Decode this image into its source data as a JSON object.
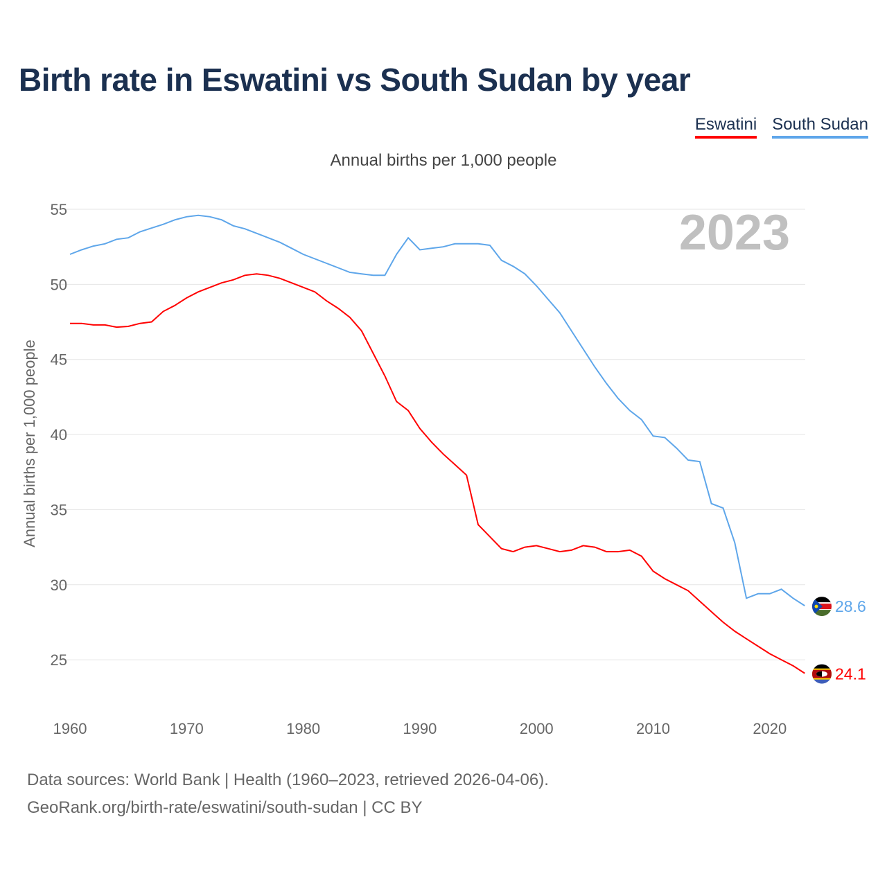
{
  "title": "Birth rate in Eswatini vs South Sudan by year",
  "footer": {
    "line1": "Data sources: World Bank | Health (1960–2023, retrieved 2026-04-06).",
    "line2": "GeoRank.org/birth-rate/eswatini/south-sudan | CC BY"
  },
  "chart_data": {
    "type": "line",
    "title": "Birth rate in Eswatini vs South Sudan by year",
    "subtitle": "Annual births per 1,000 people",
    "ylabel": "Annual births per 1,000 people",
    "xlabel": "",
    "year_label": "2023",
    "xlim": [
      1960,
      2023
    ],
    "ylim": [
      22,
      56
    ],
    "yticks": [
      25,
      30,
      35,
      40,
      45,
      50,
      55
    ],
    "xticks": [
      1960,
      1970,
      1980,
      1990,
      2000,
      2010,
      2020
    ],
    "grid": true,
    "legend": "top-right",
    "x_start": 1960,
    "series": [
      {
        "name": "Eswatini",
        "color": "#ff0000",
        "end_label": "24.1",
        "flag": "eswatini-flag",
        "values": [
          47.4,
          47.4,
          47.3,
          47.3,
          47.15,
          47.2,
          47.4,
          47.5,
          48.2,
          48.6,
          49.1,
          49.5,
          49.8,
          50.1,
          50.3,
          50.6,
          50.7,
          50.6,
          50.4,
          50.1,
          49.8,
          49.5,
          48.9,
          48.4,
          47.8,
          46.9,
          45.4,
          43.9,
          42.2,
          41.6,
          40.4,
          39.5,
          38.7,
          38.0,
          37.3,
          34.0,
          33.2,
          32.4,
          32.2,
          32.5,
          32.6,
          32.4,
          32.2,
          32.3,
          32.6,
          32.5,
          32.2,
          32.2,
          32.3,
          31.9,
          30.9,
          30.4,
          30.0,
          29.6,
          28.9,
          28.2,
          27.5,
          26.9,
          26.4,
          25.9,
          25.4,
          25.0,
          24.6,
          24.1
        ]
      },
      {
        "name": "South Sudan",
        "color": "#5ea6ea",
        "end_label": "28.6",
        "flag": "south-sudan-flag",
        "values": [
          52.0,
          52.3,
          52.55,
          52.7,
          53.0,
          53.1,
          53.5,
          53.75,
          54.0,
          54.3,
          54.5,
          54.6,
          54.5,
          54.3,
          53.9,
          53.7,
          53.4,
          53.1,
          52.8,
          52.4,
          52.0,
          51.7,
          51.4,
          51.1,
          50.8,
          50.7,
          50.6,
          50.6,
          52.0,
          53.1,
          52.3,
          52.4,
          52.5,
          52.7,
          52.7,
          52.7,
          52.6,
          51.6,
          51.2,
          50.7,
          49.9,
          49.0,
          48.1,
          46.9,
          45.7,
          44.5,
          43.4,
          42.4,
          41.6,
          41.0,
          39.9,
          39.8,
          39.1,
          38.3,
          38.2,
          35.4,
          35.1,
          32.8,
          29.1,
          29.4,
          29.4,
          29.7,
          29.1,
          28.6
        ]
      }
    ]
  }
}
